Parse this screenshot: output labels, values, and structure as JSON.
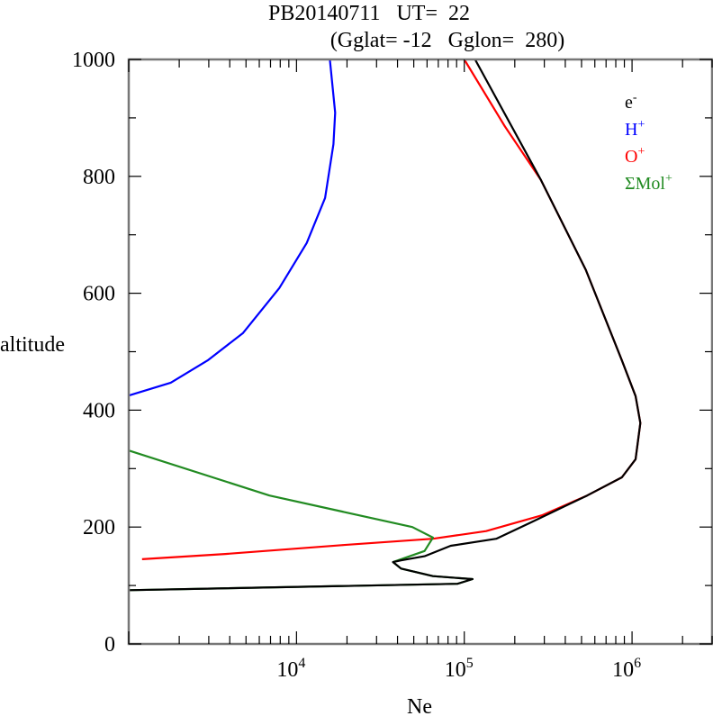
{
  "chart_data": {
    "type": "line",
    "title_line1": "PB20140711   UT=  22",
    "title_line2": "(Gglat= -12   Gglon=  280)",
    "xlabel": "Ne",
    "ylabel": "altitude",
    "xscale": "log",
    "xlim": [
      1000,
      3000000
    ],
    "ylim": [
      0,
      1000
    ],
    "xticks": [
      {
        "value": 10000,
        "base": "10",
        "exp": "4"
      },
      {
        "value": 100000,
        "base": "10",
        "exp": "5"
      },
      {
        "value": 1000000,
        "base": "10",
        "exp": "6"
      }
    ],
    "yticks": [
      "0",
      "200",
      "400",
      "600",
      "800",
      "1000"
    ],
    "legend_placement": "top-right",
    "series": [
      {
        "name": "e-",
        "label": "e",
        "sup": "-",
        "color": "#000000",
        "points": [
          [
            116000,
            1000
          ],
          [
            286000,
            794
          ],
          [
            530000,
            640
          ],
          [
            870000,
            485
          ],
          [
            1050000,
            424
          ],
          [
            1120000,
            378
          ],
          [
            1050000,
            316
          ],
          [
            870000,
            285
          ],
          [
            540000,
            254
          ],
          [
            250000,
            208
          ],
          [
            155000,
            180
          ],
          [
            83000,
            168
          ],
          [
            58000,
            150
          ],
          [
            42000,
            143
          ],
          [
            37600,
            140
          ],
          [
            42000,
            129
          ],
          [
            65000,
            116
          ],
          [
            112000,
            111
          ],
          [
            91000,
            103
          ],
          [
            1000,
            92
          ]
        ]
      },
      {
        "name": "H+",
        "label": "H",
        "sup": "+",
        "color": "#0000ff",
        "points": [
          [
            15800,
            1000
          ],
          [
            17000,
            909
          ],
          [
            16600,
            855
          ],
          [
            14800,
            763
          ],
          [
            11500,
            686
          ],
          [
            7900,
            609
          ],
          [
            4800,
            532
          ],
          [
            2950,
            485
          ],
          [
            1780,
            447
          ],
          [
            1000,
            425
          ]
        ]
      },
      {
        "name": "O+",
        "label": "O",
        "sup": "+",
        "color": "#ff0000",
        "points": [
          [
            100000,
            1000
          ],
          [
            174000,
            886
          ],
          [
            286000,
            794
          ],
          [
            530000,
            640
          ],
          [
            870000,
            485
          ],
          [
            1050000,
            424
          ],
          [
            1120000,
            378
          ],
          [
            1050000,
            316
          ],
          [
            870000,
            285
          ],
          [
            540000,
            254
          ],
          [
            290000,
            220
          ],
          [
            135000,
            193
          ],
          [
            65000,
            180
          ],
          [
            18600,
            169
          ],
          [
            3760,
            154
          ],
          [
            1200,
            145
          ]
        ]
      },
      {
        "name": "ΣMol+",
        "label": "ΣMol",
        "sup": "+",
        "color": "#228b22",
        "points": [
          [
            1000,
            331
          ],
          [
            6900,
            254
          ],
          [
            49000,
            200
          ],
          [
            65000,
            182
          ],
          [
            58000,
            159
          ],
          [
            37600,
            140
          ],
          [
            42000,
            129
          ],
          [
            65000,
            116
          ],
          [
            112000,
            111
          ],
          [
            91000,
            103
          ],
          [
            1000,
            92
          ]
        ]
      }
    ]
  }
}
